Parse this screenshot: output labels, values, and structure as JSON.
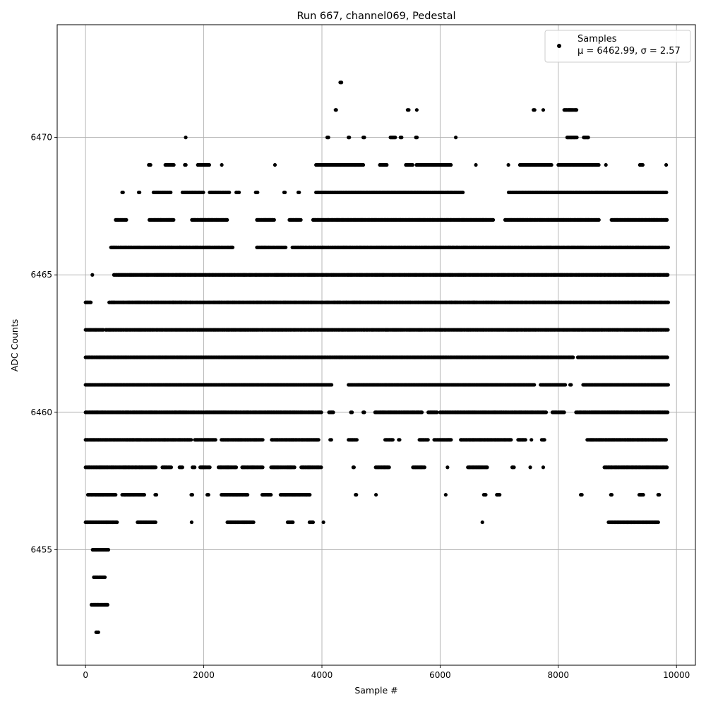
{
  "chart_data": {
    "type": "scatter",
    "title": "Run 667, channel069, Pedestal",
    "xlabel": "Sample #",
    "ylabel": "ADC Counts",
    "xlim": [
      -480,
      10320
    ],
    "ylim": [
      6450.8,
      6474.1
    ],
    "x_ticks": [
      0,
      2000,
      4000,
      6000,
      8000,
      10000
    ],
    "y_ticks": [
      6455,
      6460,
      6465,
      6470
    ],
    "x_tick_labels": [
      "0",
      "2000",
      "4000",
      "6000",
      "8000",
      "10000"
    ],
    "y_tick_labels": [
      "6455",
      "6460",
      "6465",
      "6470"
    ],
    "grid": true,
    "marker_color": "#000000",
    "legend": {
      "placement": "top-right",
      "entry_name": "Samples",
      "entry_stats": "μ = 6462.99, σ = 2.57"
    },
    "series": [
      {
        "name": "Samples",
        "n_samples": 9900,
        "levels": [
          {
            "y": 6452,
            "ranges": [
              [
                180,
                220
              ]
            ]
          },
          {
            "y": 6453,
            "ranges": [
              [
                100,
                380
              ]
            ]
          },
          {
            "y": 6454,
            "ranges": [
              [
                140,
                330
              ]
            ]
          },
          {
            "y": 6455,
            "ranges": [
              [
                120,
                390
              ]
            ]
          },
          {
            "y": 6456,
            "ranges": [
              [
                0,
                540
              ],
              [
                880,
                1200
              ],
              [
                1790,
                1800
              ],
              [
                2400,
                2850
              ],
              [
                3420,
                3520
              ],
              [
                3790,
                3860
              ],
              [
                4020,
                4030
              ],
              [
                6710,
                6720
              ],
              [
                8850,
                9700
              ]
            ]
          },
          {
            "y": 6457,
            "ranges": [
              [
                40,
                520
              ],
              [
                620,
                1000
              ],
              [
                1180,
                1200
              ],
              [
                1790,
                1810
              ],
              [
                2060,
                2080
              ],
              [
                2300,
                2750
              ],
              [
                2990,
                3150
              ],
              [
                3300,
                3800
              ],
              [
                4570,
                4590
              ],
              [
                4910,
                4920
              ],
              [
                6090,
                6100
              ],
              [
                6740,
                6780
              ],
              [
                6960,
                7020
              ],
              [
                8380,
                8400
              ],
              [
                8890,
                8920
              ],
              [
                9370,
                9450
              ],
              [
                9690,
                9720
              ]
            ]
          },
          {
            "y": 6458,
            "ranges": [
              [
                0,
                1200
              ],
              [
                1300,
                1450
              ],
              [
                1590,
                1640
              ],
              [
                1810,
                1850
              ],
              [
                1940,
                2120
              ],
              [
                2250,
                2550
              ],
              [
                2650,
                3000
              ],
              [
                3140,
                3550
              ],
              [
                3650,
                4000
              ],
              [
                4530,
                4550
              ],
              [
                4910,
                5150
              ],
              [
                5540,
                5740
              ],
              [
                6120,
                6130
              ],
              [
                6470,
                6800
              ],
              [
                7220,
                7250
              ],
              [
                7520,
                7530
              ],
              [
                7740,
                7750
              ],
              [
                8780,
                9840
              ]
            ]
          },
          {
            "y": 6459,
            "ranges": [
              [
                0,
                1800
              ],
              [
                1850,
                2200
              ],
              [
                2300,
                3000
              ],
              [
                3150,
                3950
              ],
              [
                4140,
                4160
              ],
              [
                4450,
                4600
              ],
              [
                5070,
                5200
              ],
              [
                5300,
                5330
              ],
              [
                5650,
                5800
              ],
              [
                5900,
                6200
              ],
              [
                6350,
                7200
              ],
              [
                7320,
                7450
              ],
              [
                7540,
                7550
              ],
              [
                7720,
                7770
              ],
              [
                8490,
                9840
              ]
            ]
          },
          {
            "y": 6460,
            "ranges": [
              [
                0,
                4000
              ],
              [
                4120,
                4200
              ],
              [
                4490,
                4510
              ],
              [
                4700,
                4720
              ],
              [
                4900,
                5700
              ],
              [
                5800,
                5950
              ],
              [
                6000,
                7800
              ],
              [
                7900,
                8100
              ],
              [
                8300,
                9860
              ]
            ]
          },
          {
            "y": 6461,
            "ranges": [
              [
                0,
                4180
              ],
              [
                4450,
                6800
              ],
              [
                6800,
                7600
              ],
              [
                7700,
                8120
              ],
              [
                8200,
                8220
              ],
              [
                8420,
                9860
              ]
            ]
          },
          {
            "y": 6462,
            "ranges": [
              [
                0,
                4300
              ],
              [
                4300,
                8250
              ],
              [
                8330,
                9860
              ]
            ]
          },
          {
            "y": 6463,
            "ranges": [
              [
                0,
                300
              ],
              [
                340,
                9860
              ]
            ]
          },
          {
            "y": 6464,
            "ranges": [
              [
                0,
                100
              ],
              [
                400,
                9860
              ]
            ]
          },
          {
            "y": 6465,
            "ranges": [
              [
                110,
                120
              ],
              [
                480,
                9860
              ]
            ]
          },
          {
            "y": 6466,
            "ranges": [
              [
                430,
                2500
              ],
              [
                2900,
                3400
              ],
              [
                3500,
                9860
              ]
            ]
          },
          {
            "y": 6467,
            "ranges": [
              [
                510,
                700
              ],
              [
                1080,
                1500
              ],
              [
                1800,
                2400
              ],
              [
                2900,
                3200
              ],
              [
                3450,
                3650
              ],
              [
                3850,
                6900
              ],
              [
                7100,
                8700
              ],
              [
                8900,
                9840
              ]
            ]
          },
          {
            "y": 6468,
            "ranges": [
              [
                620,
                640
              ],
              [
                900,
                920
              ],
              [
                1150,
                1450
              ],
              [
                1640,
                2000
              ],
              [
                2100,
                2450
              ],
              [
                2550,
                2600
              ],
              [
                2880,
                2920
              ],
              [
                3360,
                3380
              ],
              [
                3600,
                3620
              ],
              [
                3900,
                6400
              ],
              [
                7160,
                9840
              ]
            ]
          },
          {
            "y": 6469,
            "ranges": [
              [
                1070,
                1100
              ],
              [
                1350,
                1500
              ],
              [
                1680,
                1700
              ],
              [
                1900,
                2100
              ],
              [
                2300,
                2310
              ],
              [
                3200,
                3210
              ],
              [
                3900,
                4700
              ],
              [
                4980,
                5100
              ],
              [
                5420,
                5550
              ],
              [
                5600,
                6200
              ],
              [
                6600,
                6610
              ],
              [
                7150,
                7160
              ],
              [
                7350,
                7900
              ],
              [
                8000,
                8700
              ],
              [
                8800,
                8810
              ],
              [
                9380,
                9440
              ],
              [
                9820,
                9830
              ]
            ]
          },
          {
            "y": 6470,
            "ranges": [
              [
                1690,
                1700
              ],
              [
                4090,
                4110
              ],
              [
                4450,
                4470
              ],
              [
                4700,
                4730
              ],
              [
                5160,
                5240
              ],
              [
                5330,
                5350
              ],
              [
                5590,
                5610
              ],
              [
                6260,
                6270
              ],
              [
                8150,
                8320
              ],
              [
                8430,
                8510
              ]
            ]
          },
          {
            "y": 6471,
            "ranges": [
              [
                4230,
                4250
              ],
              [
                5450,
                5470
              ],
              [
                5600,
                5610
              ],
              [
                7580,
                7600
              ],
              [
                7740,
                7750
              ],
              [
                8100,
                8320
              ]
            ]
          },
          {
            "y": 6472,
            "ranges": [
              [
                4310,
                4330
              ]
            ]
          }
        ]
      }
    ]
  }
}
